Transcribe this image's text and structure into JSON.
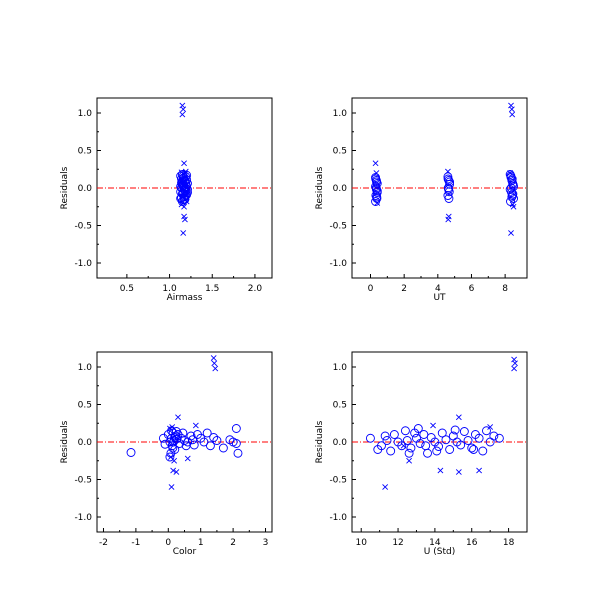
{
  "chart_data": [
    {
      "type": "scatter",
      "xlabel": "Airmass",
      "ylabel": "Residuals",
      "xlim": [
        0.15,
        2.2
      ],
      "ylim": [
        -1.2,
        1.2
      ],
      "xticks": [
        0.5,
        1.0,
        1.5,
        2.0
      ],
      "xticklabels": [
        "0.5",
        "1.0",
        "1.5",
        "2.0"
      ],
      "yticks": [
        1.0,
        0.5,
        0.0,
        -0.5,
        -1.0
      ],
      "yticklabels": [
        "1.0",
        "0.5",
        "0.0",
        "-0.5",
        "-1.0"
      ],
      "reference_line_y": 0.0,
      "series": [
        {
          "marker": "circle",
          "x": [
            1.13,
            1.14,
            1.15,
            1.16,
            1.17,
            1.18,
            1.19,
            1.2,
            1.21,
            1.13,
            1.15,
            1.17,
            1.19,
            1.21,
            1.14,
            1.16,
            1.18,
            1.2,
            1.13,
            1.15,
            1.17,
            1.19,
            1.14,
            1.16,
            1.18,
            1.2,
            1.15,
            1.17,
            1.19,
            1.16,
            1.18,
            1.14,
            1.2,
            1.13,
            1.21,
            1.15,
            1.17,
            1.19,
            1.16,
            1.18
          ],
          "y": [
            0.16,
            0.12,
            0.08,
            0.05,
            0.14,
            0.1,
            0.06,
            0.02,
            -0.02,
            -0.05,
            -0.08,
            -0.12,
            -0.1,
            -0.06,
            0.0,
            0.03,
            -0.03,
            0.11,
            -0.14,
            0.18,
            -0.16,
            0.15,
            0.07,
            -0.07,
            0.09,
            -0.09,
            0.04,
            0.01,
            -0.04,
            0.13,
            -0.11,
            -0.13,
            0.17,
            0.02,
            0.06,
            -0.18,
            -0.02,
            0.0,
            0.1,
            -0.15
          ]
        },
        {
          "marker": "x",
          "x": [
            1.15,
            1.16,
            1.15,
            1.17,
            1.18,
            1.19,
            1.14,
            1.17,
            1.16,
            1.2,
            1.17,
            1.18,
            1.14
          ],
          "y": [
            1.1,
            1.05,
            0.98,
            0.33,
            0.2,
            0.22,
            -0.22,
            -0.25,
            -0.6,
            -0.18,
            -0.38,
            -0.42,
            0.21
          ]
        }
      ]
    },
    {
      "type": "scatter",
      "xlabel": "UT",
      "ylabel": "Residuals",
      "xlim": [
        -1.1,
        9.3
      ],
      "ylim": [
        -1.2,
        1.2
      ],
      "xticks": [
        0,
        2,
        4,
        6,
        8
      ],
      "xticklabels": [
        "0",
        "2",
        "4",
        "6",
        "8"
      ],
      "yticks": [
        1.0,
        0.5,
        0.0,
        -0.5,
        -1.0
      ],
      "yticklabels": [
        "1.0",
        "0.5",
        "0.0",
        "-0.5",
        "-1.0"
      ],
      "reference_line_y": 0.0,
      "series": [
        {
          "marker": "circle",
          "x": [
            0.3,
            0.35,
            0.4,
            0.3,
            0.35,
            0.4,
            0.32,
            0.38,
            0.3,
            0.36,
            0.4,
            0.34,
            0.31,
            0.37,
            4.6,
            4.65,
            4.7,
            4.62,
            4.68,
            4.6,
            4.66,
            4.7,
            4.64,
            4.61,
            8.3,
            8.35,
            8.4,
            8.45,
            8.5,
            8.3,
            8.38,
            8.44,
            8.5,
            8.32,
            8.42,
            8.48,
            8.36,
            8.46,
            8.34,
            8.4
          ],
          "y": [
            0.14,
            0.1,
            0.06,
            0.02,
            -0.02,
            -0.06,
            -0.1,
            -0.14,
            -0.18,
            0.08,
            -0.04,
            0.0,
            0.12,
            -0.12,
            0.15,
            0.1,
            0.05,
            0.0,
            -0.05,
            -0.1,
            -0.14,
            0.08,
            -0.02,
            0.12,
            0.18,
            0.14,
            0.1,
            0.06,
            0.02,
            -0.02,
            -0.06,
            -0.1,
            -0.14,
            -0.18,
            0.12,
            0.04,
            0.0,
            -0.08,
            0.16,
            -0.12
          ]
        },
        {
          "marker": "x",
          "x": [
            0.3,
            0.35,
            0.4,
            4.6,
            4.65,
            4.62,
            8.35,
            8.4,
            8.42,
            8.3,
            8.5,
            8.35,
            8.45
          ],
          "y": [
            0.33,
            0.2,
            -0.2,
            0.22,
            -0.38,
            -0.42,
            1.1,
            1.05,
            0.98,
            0.2,
            -0.25,
            -0.6,
            -0.22
          ]
        }
      ]
    },
    {
      "type": "scatter",
      "xlabel": "Color",
      "ylabel": "Residuals",
      "xlim": [
        -2.2,
        3.2
      ],
      "ylim": [
        -1.2,
        1.2
      ],
      "xticks": [
        -2,
        -1,
        0,
        1,
        2,
        3
      ],
      "xticklabels": [
        "-2",
        "-1",
        "0",
        "1",
        "2",
        "3"
      ],
      "yticks": [
        1.0,
        0.5,
        0.0,
        -0.5,
        -1.0
      ],
      "yticklabels": [
        "1.0",
        "0.5",
        "0.0",
        "-0.5",
        "-1.0"
      ],
      "reference_line_y": 0.0,
      "series": [
        {
          "marker": "circle",
          "x": [
            -1.15,
            -0.15,
            -0.1,
            0.0,
            0.05,
            0.1,
            0.12,
            0.15,
            0.18,
            0.2,
            0.22,
            0.25,
            0.08,
            0.1,
            0.14,
            0.16,
            0.2,
            0.3,
            0.35,
            0.4,
            0.45,
            0.5,
            0.55,
            0.6,
            0.7,
            0.75,
            0.8,
            0.9,
            1.0,
            1.1,
            1.2,
            1.3,
            1.4,
            1.5,
            1.7,
            1.9,
            2.0,
            2.1,
            2.15,
            2.1,
            0.05,
            0.25
          ],
          "y": [
            -0.14,
            0.05,
            -0.03,
            0.1,
            0.0,
            0.05,
            -0.05,
            0.12,
            0.02,
            -0.1,
            0.08,
            0.04,
            -0.15,
            0.15,
            -0.08,
            0.0,
            0.06,
            0.1,
            -0.02,
            0.05,
            0.12,
            0.02,
            -0.05,
            0.0,
            0.08,
            0.03,
            -0.04,
            0.1,
            0.05,
            0.0,
            0.12,
            -0.05,
            0.06,
            0.02,
            -0.08,
            0.03,
            0.0,
            0.18,
            -0.15,
            -0.02,
            -0.2,
            0.14
          ]
        },
        {
          "marker": "x",
          "x": [
            1.4,
            1.42,
            1.45,
            0.15,
            0.25,
            0.3,
            0.1,
            0.08,
            0.12,
            0.85,
            0.6,
            0.05,
            0.18
          ],
          "y": [
            1.12,
            1.05,
            0.98,
            -0.38,
            -0.4,
            0.33,
            -0.6,
            -0.2,
            0.2,
            0.22,
            -0.22,
            0.18,
            -0.25
          ]
        }
      ]
    },
    {
      "type": "scatter",
      "xlabel": "U (Std)",
      "ylabel": "Residuals",
      "xlim": [
        9.5,
        19.0
      ],
      "ylim": [
        -1.2,
        1.2
      ],
      "xticks": [
        10,
        12,
        14,
        16,
        18
      ],
      "xticklabels": [
        "10",
        "12",
        "14",
        "16",
        "18"
      ],
      "yticks": [
        1.0,
        0.5,
        0.0,
        -0.5,
        -1.0
      ],
      "yticklabels": [
        "1.0",
        "0.5",
        "0.0",
        "-0.5",
        "-1.0"
      ],
      "reference_line_y": 0.0,
      "series": [
        {
          "marker": "circle",
          "x": [
            10.5,
            10.9,
            11.1,
            11.3,
            11.6,
            11.8,
            12.0,
            12.2,
            12.4,
            12.5,
            12.7,
            12.9,
            13.0,
            13.2,
            13.4,
            13.6,
            13.8,
            14.0,
            14.2,
            14.4,
            14.6,
            14.8,
            15.0,
            15.2,
            15.4,
            15.6,
            15.8,
            16.0,
            16.2,
            16.4,
            16.6,
            16.8,
            17.0,
            17.2,
            17.5,
            12.6,
            13.1,
            14.1,
            15.1,
            16.1,
            11.4,
            13.5
          ],
          "y": [
            0.05,
            -0.1,
            -0.05,
            0.08,
            -0.12,
            0.1,
            0.0,
            -0.05,
            0.15,
            0.02,
            -0.08,
            0.12,
            0.05,
            -0.02,
            0.1,
            -0.15,
            0.06,
            0.0,
            -0.06,
            0.12,
            0.03,
            -0.1,
            0.08,
            0.0,
            -0.04,
            0.14,
            0.02,
            -0.08,
            0.1,
            0.05,
            -0.12,
            0.15,
            0.0,
            0.08,
            0.05,
            -0.15,
            0.18,
            -0.12,
            0.16,
            -0.1,
            0.02,
            -0.05
          ]
        },
        {
          "marker": "x",
          "x": [
            18.3,
            18.35,
            18.3,
            11.3,
            14.3,
            15.3,
            16.4,
            12.6,
            13.9,
            15.3,
            17.0,
            12.3
          ],
          "y": [
            1.1,
            1.05,
            0.98,
            -0.6,
            -0.38,
            -0.4,
            -0.38,
            -0.25,
            0.22,
            0.33,
            0.2,
            -0.05
          ]
        }
      ]
    }
  ],
  "colors": {
    "markers": "#0000ff",
    "reference_line": "#ff0000",
    "axes": "#000000"
  }
}
